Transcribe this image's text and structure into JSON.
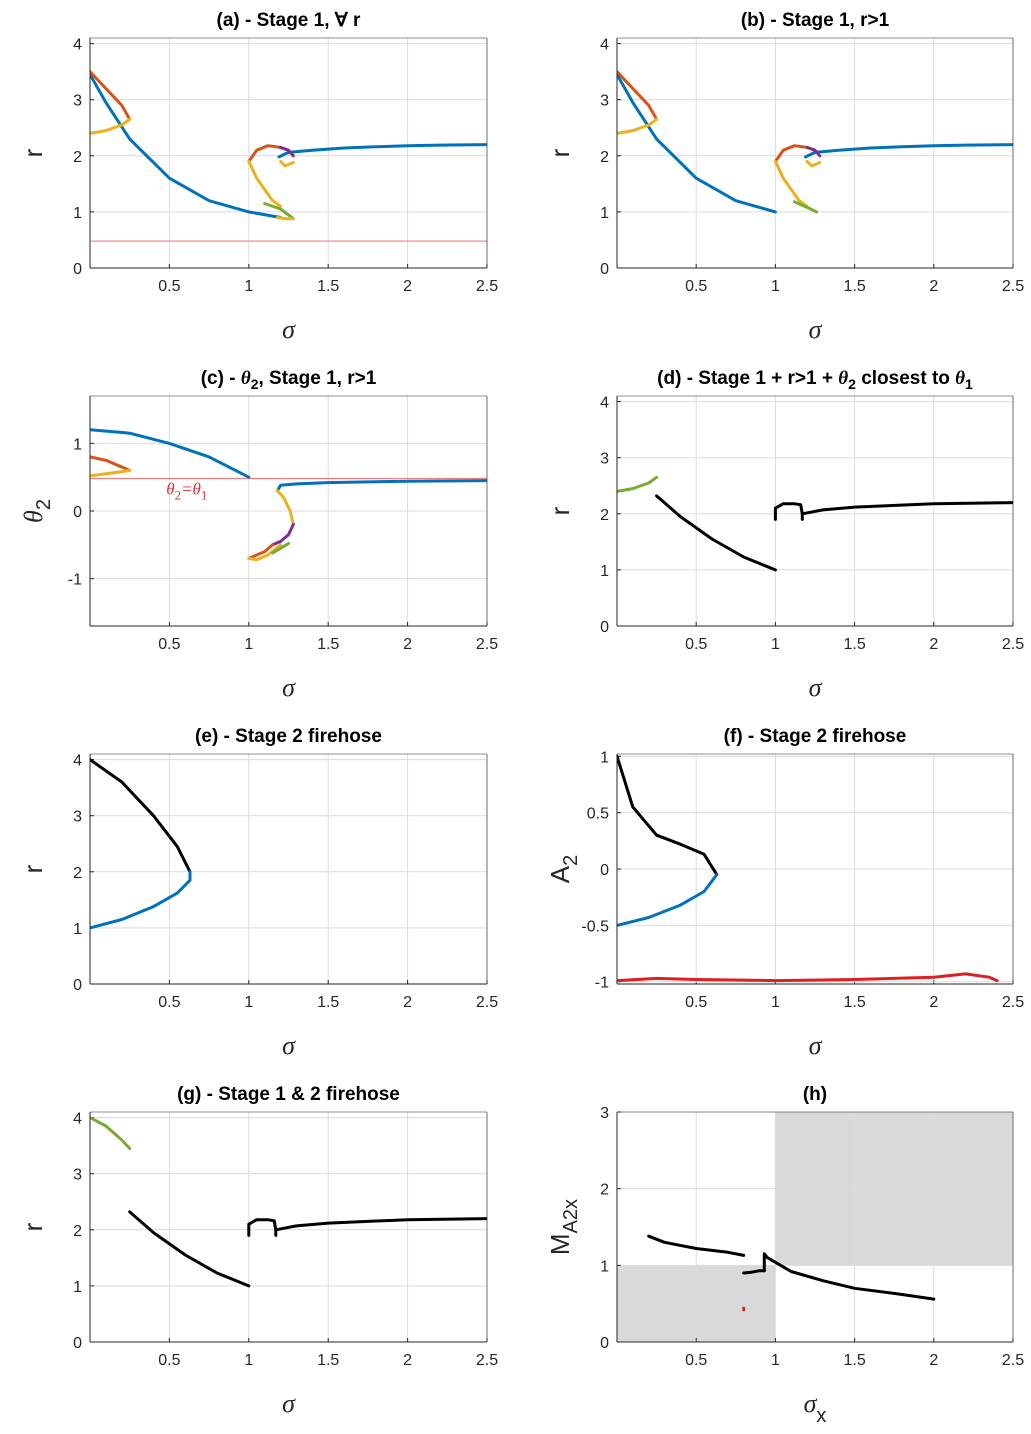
{
  "colors": {
    "blue": "#0072BD",
    "orange": "#D95319",
    "yellow": "#EDB120",
    "purple": "#7E2F8E",
    "green": "#77AC30",
    "black": "#000000",
    "red": "#E02020",
    "light_red": "#F08080",
    "shade": "#D9D9D9"
  },
  "chart_data": [
    {
      "id": "a",
      "type": "line",
      "title": "(a) - Stage 1, ∀ r",
      "xlabel": "σ",
      "ylabel": "r",
      "xlim": [
        0,
        2.5
      ],
      "ylim": [
        0,
        4.1
      ],
      "xticks": [
        "0.5",
        "1",
        "1.5",
        "2",
        "2.5"
      ],
      "yticks": [
        "0",
        "1",
        "2",
        "3",
        "4"
      ],
      "grid": true,
      "series": [
        {
          "color": "blue",
          "x": [
            0,
            0.1,
            0.25,
            0.5,
            0.75,
            1.0,
            1.2
          ],
          "y": [
            3.45,
            2.95,
            2.3,
            1.6,
            1.2,
            1.0,
            0.9
          ]
        },
        {
          "color": "blue",
          "x": [
            1.19,
            1.25,
            1.4,
            1.6,
            1.8,
            2.0,
            2.2,
            2.5
          ],
          "y": [
            1.98,
            2.06,
            2.1,
            2.14,
            2.16,
            2.18,
            2.19,
            2.2
          ]
        },
        {
          "color": "orange",
          "x": [
            0,
            0.1,
            0.2,
            0.25
          ],
          "y": [
            3.5,
            3.2,
            2.9,
            2.65
          ]
        },
        {
          "color": "yellow",
          "x": [
            0,
            0.1,
            0.2,
            0.25
          ],
          "y": [
            2.4,
            2.45,
            2.55,
            2.65
          ]
        },
        {
          "color": "orange",
          "x": [
            1.0,
            1.05,
            1.12,
            1.2
          ],
          "y": [
            1.9,
            2.1,
            2.18,
            2.15
          ]
        },
        {
          "color": "yellow",
          "x": [
            1.0,
            1.05,
            1.15,
            1.2
          ],
          "y": [
            1.9,
            1.6,
            1.2,
            1.1
          ]
        },
        {
          "color": "green",
          "x": [
            1.1,
            1.2,
            1.28
          ],
          "y": [
            1.15,
            1.05,
            0.88
          ]
        },
        {
          "color": "yellow",
          "x": [
            1.18,
            1.23,
            1.28
          ],
          "y": [
            0.9,
            0.88,
            0.88
          ]
        },
        {
          "color": "purple",
          "x": [
            1.2,
            1.25,
            1.28
          ],
          "y": [
            2.15,
            2.1,
            2.0
          ]
        },
        {
          "color": "yellow",
          "x": [
            1.2,
            1.23,
            1.28
          ],
          "y": [
            1.9,
            1.82,
            1.88
          ]
        }
      ],
      "hlines": [
        {
          "y": 0.48,
          "color": "light_red"
        }
      ]
    },
    {
      "id": "b",
      "type": "line",
      "title": "(b) - Stage 1,  r>1",
      "xlabel": "σ",
      "ylabel": "r",
      "xlim": [
        0,
        2.5
      ],
      "ylim": [
        0,
        4.1
      ],
      "xticks": [
        "0.5",
        "1",
        "1.5",
        "2",
        "2.5"
      ],
      "yticks": [
        "0",
        "1",
        "2",
        "3",
        "4"
      ],
      "grid": true,
      "series": [
        {
          "color": "blue",
          "x": [
            0,
            0.1,
            0.25,
            0.5,
            0.75,
            1.0
          ],
          "y": [
            3.45,
            2.95,
            2.3,
            1.6,
            1.2,
            1.0
          ]
        },
        {
          "color": "blue",
          "x": [
            1.19,
            1.25,
            1.4,
            1.6,
            1.8,
            2.0,
            2.2,
            2.5
          ],
          "y": [
            1.98,
            2.06,
            2.1,
            2.14,
            2.16,
            2.18,
            2.19,
            2.2
          ]
        },
        {
          "color": "orange",
          "x": [
            0,
            0.1,
            0.2,
            0.25
          ],
          "y": [
            3.5,
            3.2,
            2.9,
            2.65
          ]
        },
        {
          "color": "yellow",
          "x": [
            0,
            0.1,
            0.2,
            0.25
          ],
          "y": [
            2.4,
            2.45,
            2.55,
            2.65
          ]
        },
        {
          "color": "orange",
          "x": [
            1.0,
            1.05,
            1.12,
            1.2
          ],
          "y": [
            1.9,
            2.1,
            2.18,
            2.15
          ]
        },
        {
          "color": "yellow",
          "x": [
            1.0,
            1.05,
            1.15,
            1.2
          ],
          "y": [
            1.9,
            1.6,
            1.2,
            1.1
          ]
        },
        {
          "color": "green",
          "x": [
            1.12,
            1.2,
            1.26
          ],
          "y": [
            1.18,
            1.08,
            1.0
          ]
        },
        {
          "color": "purple",
          "x": [
            1.2,
            1.25,
            1.28
          ],
          "y": [
            2.15,
            2.1,
            2.0
          ]
        },
        {
          "color": "yellow",
          "x": [
            1.2,
            1.23,
            1.28
          ],
          "y": [
            1.9,
            1.82,
            1.88
          ]
        }
      ]
    },
    {
      "id": "c",
      "type": "line",
      "title_parts": [
        "(c) - ",
        "θ",
        "2",
        ", Stage 1, r>1"
      ],
      "xlabel": "σ",
      "ylabel": "θ",
      "ylabel_sub": "2",
      "annotation": {
        "text": "θ",
        "sub": "2",
        "rest": "=θ",
        "sub2": "1",
        "x": 0.48,
        "y": 0.3
      },
      "xlim": [
        0,
        2.5
      ],
      "ylim": [
        -1.7,
        1.7
      ],
      "xticks": [
        "0.5",
        "1",
        "1.5",
        "2",
        "2.5"
      ],
      "yticks": [
        "-1",
        "0",
        "1"
      ],
      "grid": true,
      "series": [
        {
          "color": "blue",
          "x": [
            0,
            0.25,
            0.5,
            0.75,
            1.0
          ],
          "y": [
            1.2,
            1.15,
            1.0,
            0.8,
            0.5
          ]
        },
        {
          "color": "blue",
          "x": [
            1.18,
            1.2,
            1.3,
            1.5,
            2.0,
            2.5
          ],
          "y": [
            0.3,
            0.38,
            0.4,
            0.42,
            0.44,
            0.45
          ]
        },
        {
          "color": "orange",
          "x": [
            0,
            0.1,
            0.2,
            0.25
          ],
          "y": [
            0.8,
            0.75,
            0.65,
            0.6
          ]
        },
        {
          "color": "yellow",
          "x": [
            0,
            0.1,
            0.2,
            0.25
          ],
          "y": [
            0.52,
            0.55,
            0.58,
            0.6
          ]
        },
        {
          "color": "yellow",
          "x": [
            1.18,
            1.22,
            1.26,
            1.28
          ],
          "y": [
            0.3,
            0.2,
            0.0,
            -0.2
          ]
        },
        {
          "color": "purple",
          "x": [
            1.28,
            1.25,
            1.2,
            1.15
          ],
          "y": [
            -0.2,
            -0.35,
            -0.45,
            -0.5
          ]
        },
        {
          "color": "orange",
          "x": [
            1.15,
            1.1,
            1.0
          ],
          "y": [
            -0.5,
            -0.6,
            -0.7
          ]
        },
        {
          "color": "yellow",
          "x": [
            1.0,
            1.05,
            1.12,
            1.2
          ],
          "y": [
            -0.7,
            -0.72,
            -0.65,
            -0.5
          ]
        },
        {
          "color": "green",
          "x": [
            1.15,
            1.2,
            1.25
          ],
          "y": [
            -0.62,
            -0.55,
            -0.48
          ]
        }
      ],
      "hlines": [
        {
          "y": 0.48,
          "color": "light_red"
        }
      ]
    },
    {
      "id": "d",
      "type": "line",
      "title_parts": [
        "(d) - Stage 1 + r>1 + ",
        "θ",
        "2",
        " closest to ",
        "θ",
        "1"
      ],
      "xlabel": "σ",
      "ylabel": "r",
      "xlim": [
        0,
        2.5
      ],
      "ylim": [
        0,
        4.1
      ],
      "xticks": [
        "0.5",
        "1",
        "1.5",
        "2",
        "2.5"
      ],
      "yticks": [
        "0",
        "1",
        "2",
        "3",
        "4"
      ],
      "grid": true,
      "series": [
        {
          "color": "green",
          "x": [
            0,
            0.1,
            0.2,
            0.25
          ],
          "y": [
            2.4,
            2.45,
            2.55,
            2.65
          ]
        },
        {
          "color": "black",
          "x": [
            0.25,
            0.4,
            0.6,
            0.8,
            1.0
          ],
          "y": [
            2.32,
            1.95,
            1.55,
            1.23,
            1.0
          ]
        },
        {
          "color": "black",
          "x": [
            1.0,
            1.0,
            1.05,
            1.12,
            1.16
          ],
          "y": [
            1.9,
            2.1,
            2.18,
            2.18,
            2.16
          ]
        },
        {
          "color": "black",
          "x": [
            1.16,
            1.17,
            1.17
          ],
          "y": [
            2.16,
            2.0,
            1.9
          ]
        },
        {
          "color": "black",
          "x": [
            1.17,
            1.3,
            1.5,
            2.0,
            2.5
          ],
          "y": [
            2.0,
            2.07,
            2.12,
            2.18,
            2.2
          ]
        }
      ]
    },
    {
      "id": "e",
      "type": "line",
      "title": "(e) - Stage 2 firehose",
      "xlabel": "σ",
      "ylabel": "r",
      "xlim": [
        0,
        2.5
      ],
      "ylim": [
        0,
        4.1
      ],
      "xticks": [
        "0.5",
        "1",
        "1.5",
        "2",
        "2.5"
      ],
      "yticks": [
        "0",
        "1",
        "2",
        "3",
        "4"
      ],
      "grid": true,
      "series": [
        {
          "color": "black",
          "x": [
            0,
            0.2,
            0.4,
            0.55,
            0.63
          ],
          "y": [
            4.0,
            3.6,
            3.0,
            2.45,
            2.0
          ]
        },
        {
          "color": "blue",
          "x": [
            0,
            0.2,
            0.4,
            0.55,
            0.63,
            0.63
          ],
          "y": [
            1.0,
            1.15,
            1.38,
            1.62,
            1.85,
            2.0
          ]
        }
      ]
    },
    {
      "id": "f",
      "type": "line",
      "title": "(f) - Stage 2 firehose",
      "xlabel": "σ",
      "ylabel": "A",
      "ylabel_sub": "2",
      "xlim": [
        0,
        2.5
      ],
      "ylim": [
        -1.02,
        1.02
      ],
      "xticks": [
        "0.5",
        "1",
        "1.5",
        "2",
        "2.5"
      ],
      "yticks": [
        "-1",
        "-0.5",
        "0",
        "0.5",
        "1"
      ],
      "grid": true,
      "series": [
        {
          "color": "black",
          "x": [
            0,
            0.1,
            0.25,
            0.4,
            0.55,
            0.63
          ],
          "y": [
            1.0,
            0.55,
            0.3,
            0.22,
            0.13,
            -0.05
          ]
        },
        {
          "color": "blue",
          "x": [
            0,
            0.2,
            0.4,
            0.55,
            0.63
          ],
          "y": [
            -0.5,
            -0.43,
            -0.32,
            -0.2,
            -0.05
          ]
        },
        {
          "color": "red",
          "x": [
            0,
            0.25,
            0.5,
            1.0,
            1.5,
            2.0,
            2.2,
            2.35,
            2.4
          ],
          "y": [
            -0.99,
            -0.97,
            -0.98,
            -0.99,
            -0.98,
            -0.96,
            -0.93,
            -0.96,
            -0.99
          ]
        }
      ]
    },
    {
      "id": "g",
      "type": "line",
      "title": "(g) - Stage 1 & 2 firehose",
      "xlabel": "σ",
      "ylabel": "r",
      "xlim": [
        0,
        2.5
      ],
      "ylim": [
        0,
        4.1
      ],
      "xticks": [
        "0.5",
        "1",
        "1.5",
        "2",
        "2.5"
      ],
      "yticks": [
        "0",
        "1",
        "2",
        "3",
        "4"
      ],
      "grid": true,
      "series": [
        {
          "color": "green",
          "x": [
            0,
            0.1,
            0.2,
            0.25
          ],
          "y": [
            4.0,
            3.85,
            3.6,
            3.45
          ]
        },
        {
          "color": "black",
          "x": [
            0.25,
            0.4,
            0.6,
            0.8,
            1.0
          ],
          "y": [
            2.32,
            1.95,
            1.55,
            1.23,
            1.0
          ]
        },
        {
          "color": "black",
          "x": [
            1.0,
            1.0,
            1.05,
            1.12,
            1.16
          ],
          "y": [
            1.9,
            2.1,
            2.18,
            2.18,
            2.16
          ]
        },
        {
          "color": "black",
          "x": [
            1.16,
            1.17,
            1.17
          ],
          "y": [
            2.16,
            2.0,
            1.9
          ]
        },
        {
          "color": "black",
          "x": [
            1.17,
            1.3,
            1.5,
            2.0,
            2.5
          ],
          "y": [
            2.0,
            2.07,
            2.12,
            2.18,
            2.2
          ]
        }
      ]
    },
    {
      "id": "h",
      "type": "line",
      "title": "(h)",
      "xlabel": "σ",
      "xlabel_sub": "x",
      "ylabel": "M",
      "ylabel_sub": "A2x",
      "xlim": [
        0,
        2.5
      ],
      "ylim": [
        0,
        3
      ],
      "xticks": [
        "0.5",
        "1",
        "1.5",
        "2",
        "2.5"
      ],
      "yticks": [
        "0",
        "1",
        "2",
        "3"
      ],
      "grid": true,
      "shaded_regions": [
        {
          "x": [
            0,
            1
          ],
          "y": [
            0,
            1
          ],
          "color": "shade"
        },
        {
          "x": [
            1,
            2.5
          ],
          "y": [
            1,
            3
          ],
          "color": "shade"
        }
      ],
      "series": [
        {
          "color": "black",
          "x": [
            0.2,
            0.3,
            0.5,
            0.7,
            0.8
          ],
          "y": [
            1.38,
            1.3,
            1.22,
            1.17,
            1.13
          ]
        },
        {
          "color": "black",
          "x": [
            0.8,
            0.85,
            0.9,
            0.93
          ],
          "y": [
            0.9,
            0.91,
            0.93,
            0.93
          ]
        },
        {
          "color": "black",
          "x": [
            0.93,
            0.93,
            0.95,
            1.1,
            1.3,
            1.5,
            1.8,
            2.0
          ],
          "y": [
            0.93,
            1.15,
            1.1,
            0.92,
            0.8,
            0.7,
            0.62,
            0.56
          ]
        },
        {
          "color": "red",
          "x": [
            0.8,
            0.8
          ],
          "y": [
            0.44,
            0.42
          ]
        }
      ]
    }
  ]
}
